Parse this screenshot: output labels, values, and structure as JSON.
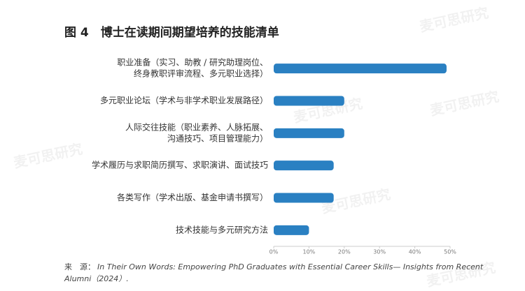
{
  "chart_data": {
    "type": "barh",
    "title": "图 4　博士在读期间期望培养的技能清单",
    "categories": [
      [
        "职业准备（实习、助教 / 研究助理岗位、",
        "终身教职评审流程、多元职业选择）"
      ],
      [
        "多元职业论坛（学术与非学术职业发展路径）"
      ],
      [
        "人际交往技能（职业素养、人脉拓展、",
        "沟通技巧、项目管理能力）"
      ],
      [
        "学术履历与求职简历撰写、求职演讲、面试技巧"
      ],
      [
        "各类写作（学术出版、基金申请书撰写）"
      ],
      [
        "技术技能与多元研究方法"
      ]
    ],
    "values": [
      49,
      20,
      20,
      17,
      17,
      10
    ],
    "color": "#2a80c2",
    "xlim": [
      0,
      50
    ],
    "xticks": [
      {
        "value": 0,
        "label": "0%"
      },
      {
        "value": 10,
        "label": "10%"
      },
      {
        "value": 20,
        "label": "20%"
      },
      {
        "value": 30,
        "label": "30%"
      },
      {
        "value": 40,
        "label": "40%"
      },
      {
        "value": 50,
        "label": "50%"
      }
    ],
    "grid": false,
    "source_label": "来　源：",
    "source_lines": [
      "In Their Own Words: Empowering PhD Graduates with Essential Career Skills— Insights from Recent",
      "Alumni（2024）."
    ],
    "watermark": "麦可思研究"
  }
}
